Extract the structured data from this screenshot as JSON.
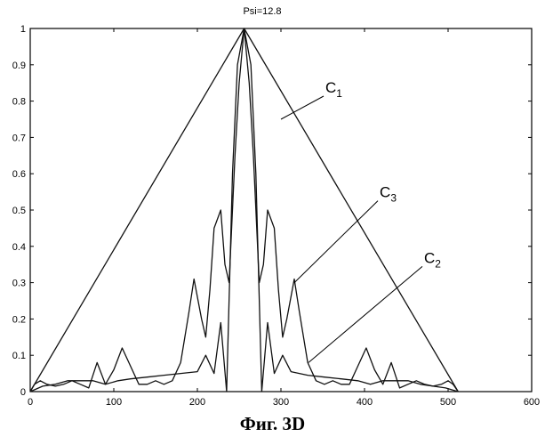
{
  "chart_data": {
    "type": "line",
    "title": "Psi=12.8",
    "xlim": [
      0,
      600
    ],
    "ylim": [
      0,
      1
    ],
    "xticks": [
      0,
      100,
      200,
      300,
      400,
      500,
      600
    ],
    "yticks": [
      0,
      0.1,
      0.2,
      0.3,
      0.4,
      0.5,
      0.6,
      0.7,
      0.8,
      0.9,
      1
    ],
    "xtick_labels": [
      "0",
      "100",
      "200",
      "300",
      "400",
      "500",
      "600"
    ],
    "ytick_labels": [
      "0",
      "0.1",
      "0.2",
      "0.3",
      "0.4",
      "0.5",
      "0.6",
      "0.7",
      "0.8",
      "0.9",
      "1"
    ],
    "grid": false,
    "series": [
      {
        "name": "C1",
        "x": [
          0,
          256,
          512
        ],
        "y": [
          0,
          1,
          0
        ]
      },
      {
        "name": "C3",
        "x": [
          0,
          5,
          12,
          20,
          30,
          40,
          50,
          60,
          70,
          80,
          90,
          100,
          110,
          120,
          130,
          140,
          150,
          160,
          170,
          180,
          190,
          196,
          205,
          210,
          215,
          220,
          228,
          233,
          238,
          245,
          250,
          256,
          262,
          267,
          274,
          279,
          284,
          292,
          297,
          302,
          307,
          316,
          322,
          332,
          342,
          352,
          362,
          372,
          382,
          392,
          402,
          412,
          422,
          432,
          442,
          452,
          462,
          472,
          482,
          492,
          500,
          506,
          512
        ],
        "y": [
          0,
          0.02,
          0.03,
          0.02,
          0.015,
          0.02,
          0.03,
          0.02,
          0.01,
          0.08,
          0.02,
          0.06,
          0.12,
          0.07,
          0.02,
          0.02,
          0.03,
          0.02,
          0.03,
          0.08,
          0.22,
          0.31,
          0.2,
          0.15,
          0.28,
          0.45,
          0.5,
          0.35,
          0.3,
          0.65,
          0.85,
          1.0,
          0.85,
          0.65,
          0.3,
          0.35,
          0.5,
          0.45,
          0.28,
          0.15,
          0.2,
          0.31,
          0.22,
          0.08,
          0.03,
          0.02,
          0.03,
          0.02,
          0.02,
          0.07,
          0.12,
          0.06,
          0.02,
          0.08,
          0.01,
          0.02,
          0.03,
          0.02,
          0.015,
          0.02,
          0.03,
          0.02,
          0
        ]
      },
      {
        "name": "C2",
        "x": [
          0,
          15,
          30,
          45,
          60,
          75,
          90,
          105,
          120,
          140,
          160,
          180,
          200,
          210,
          220,
          228,
          235,
          242,
          248,
          256,
          264,
          270,
          277,
          284,
          292,
          302,
          312,
          322,
          332,
          352,
          372,
          392,
          407,
          422,
          437,
          452,
          467,
          482,
          497,
          512
        ],
        "y": [
          0,
          0.015,
          0.02,
          0.03,
          0.03,
          0.03,
          0.02,
          0.03,
          0.035,
          0.04,
          0.045,
          0.05,
          0.055,
          0.1,
          0.05,
          0.19,
          0.0,
          0.6,
          0.9,
          1.0,
          0.9,
          0.6,
          0.0,
          0.19,
          0.05,
          0.1,
          0.055,
          0.05,
          0.045,
          0.04,
          0.035,
          0.03,
          0.02,
          0.03,
          0.03,
          0.03,
          0.02,
          0.015,
          0.01,
          0
        ]
      }
    ],
    "annotations": [
      {
        "base": "C",
        "sub": "1",
        "target_x": 300,
        "target_y": 0.75
      },
      {
        "base": "C",
        "sub": "3",
        "target_x": 316,
        "target_y": 0.3
      },
      {
        "base": "C",
        "sub": "2",
        "target_x": 333,
        "target_y": 0.08
      }
    ]
  },
  "caption": "Фиг. 3D"
}
